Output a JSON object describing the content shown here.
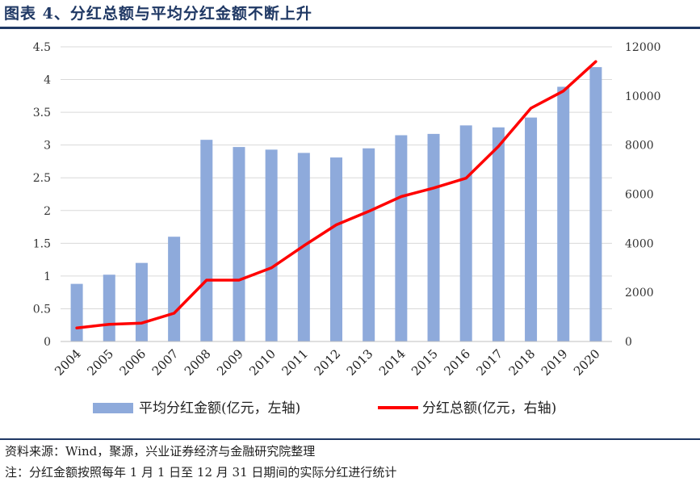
{
  "header": {
    "title": "图表 4、分红总额与平均分红金额不断上升"
  },
  "footer": {
    "source": "资料来源：Wind，聚源，兴业证券经济与金融研究院整理",
    "note": "注：分红金额按照每年 1 月 1 日至 12 月 31 日期间的实际分红进行统计"
  },
  "chart_data": {
    "type": "bar",
    "title": "图表 4、分红总额与平均分红金额不断上升",
    "categories": [
      "2004",
      "2005",
      "2006",
      "2007",
      "2008",
      "2009",
      "2010",
      "2011",
      "2012",
      "2013",
      "2014",
      "2015",
      "2016",
      "2017",
      "2018",
      "2019",
      "2020"
    ],
    "series": [
      {
        "name": "平均分红金额(亿元，左轴)",
        "type": "bar",
        "axis": "left",
        "color": "#8eaadb",
        "values": [
          0.88,
          1.02,
          1.2,
          1.6,
          3.08,
          2.97,
          2.93,
          2.88,
          2.81,
          2.95,
          3.15,
          3.17,
          3.3,
          3.27,
          3.42,
          3.89,
          4.19
        ]
      },
      {
        "name": "分红总额(亿元，右轴)",
        "type": "line",
        "axis": "right",
        "color": "#ff0000",
        "values": [
          550,
          700,
          750,
          1150,
          2500,
          2500,
          3000,
          3900,
          4750,
          5300,
          5900,
          6250,
          6650,
          7950,
          9500,
          10200,
          11400
        ]
      }
    ],
    "y_left": {
      "min": 0,
      "max": 4.5,
      "ticks": [
        "0",
        "0.5",
        "1",
        "1.5",
        "2",
        "2.5",
        "3",
        "3.5",
        "4",
        "4.5"
      ]
    },
    "y_right": {
      "min": 0,
      "max": 12000,
      "ticks": [
        "0",
        "2000",
        "4000",
        "6000",
        "8000",
        "10000",
        "12000"
      ]
    },
    "grid": true,
    "legend_position": "bottom"
  }
}
